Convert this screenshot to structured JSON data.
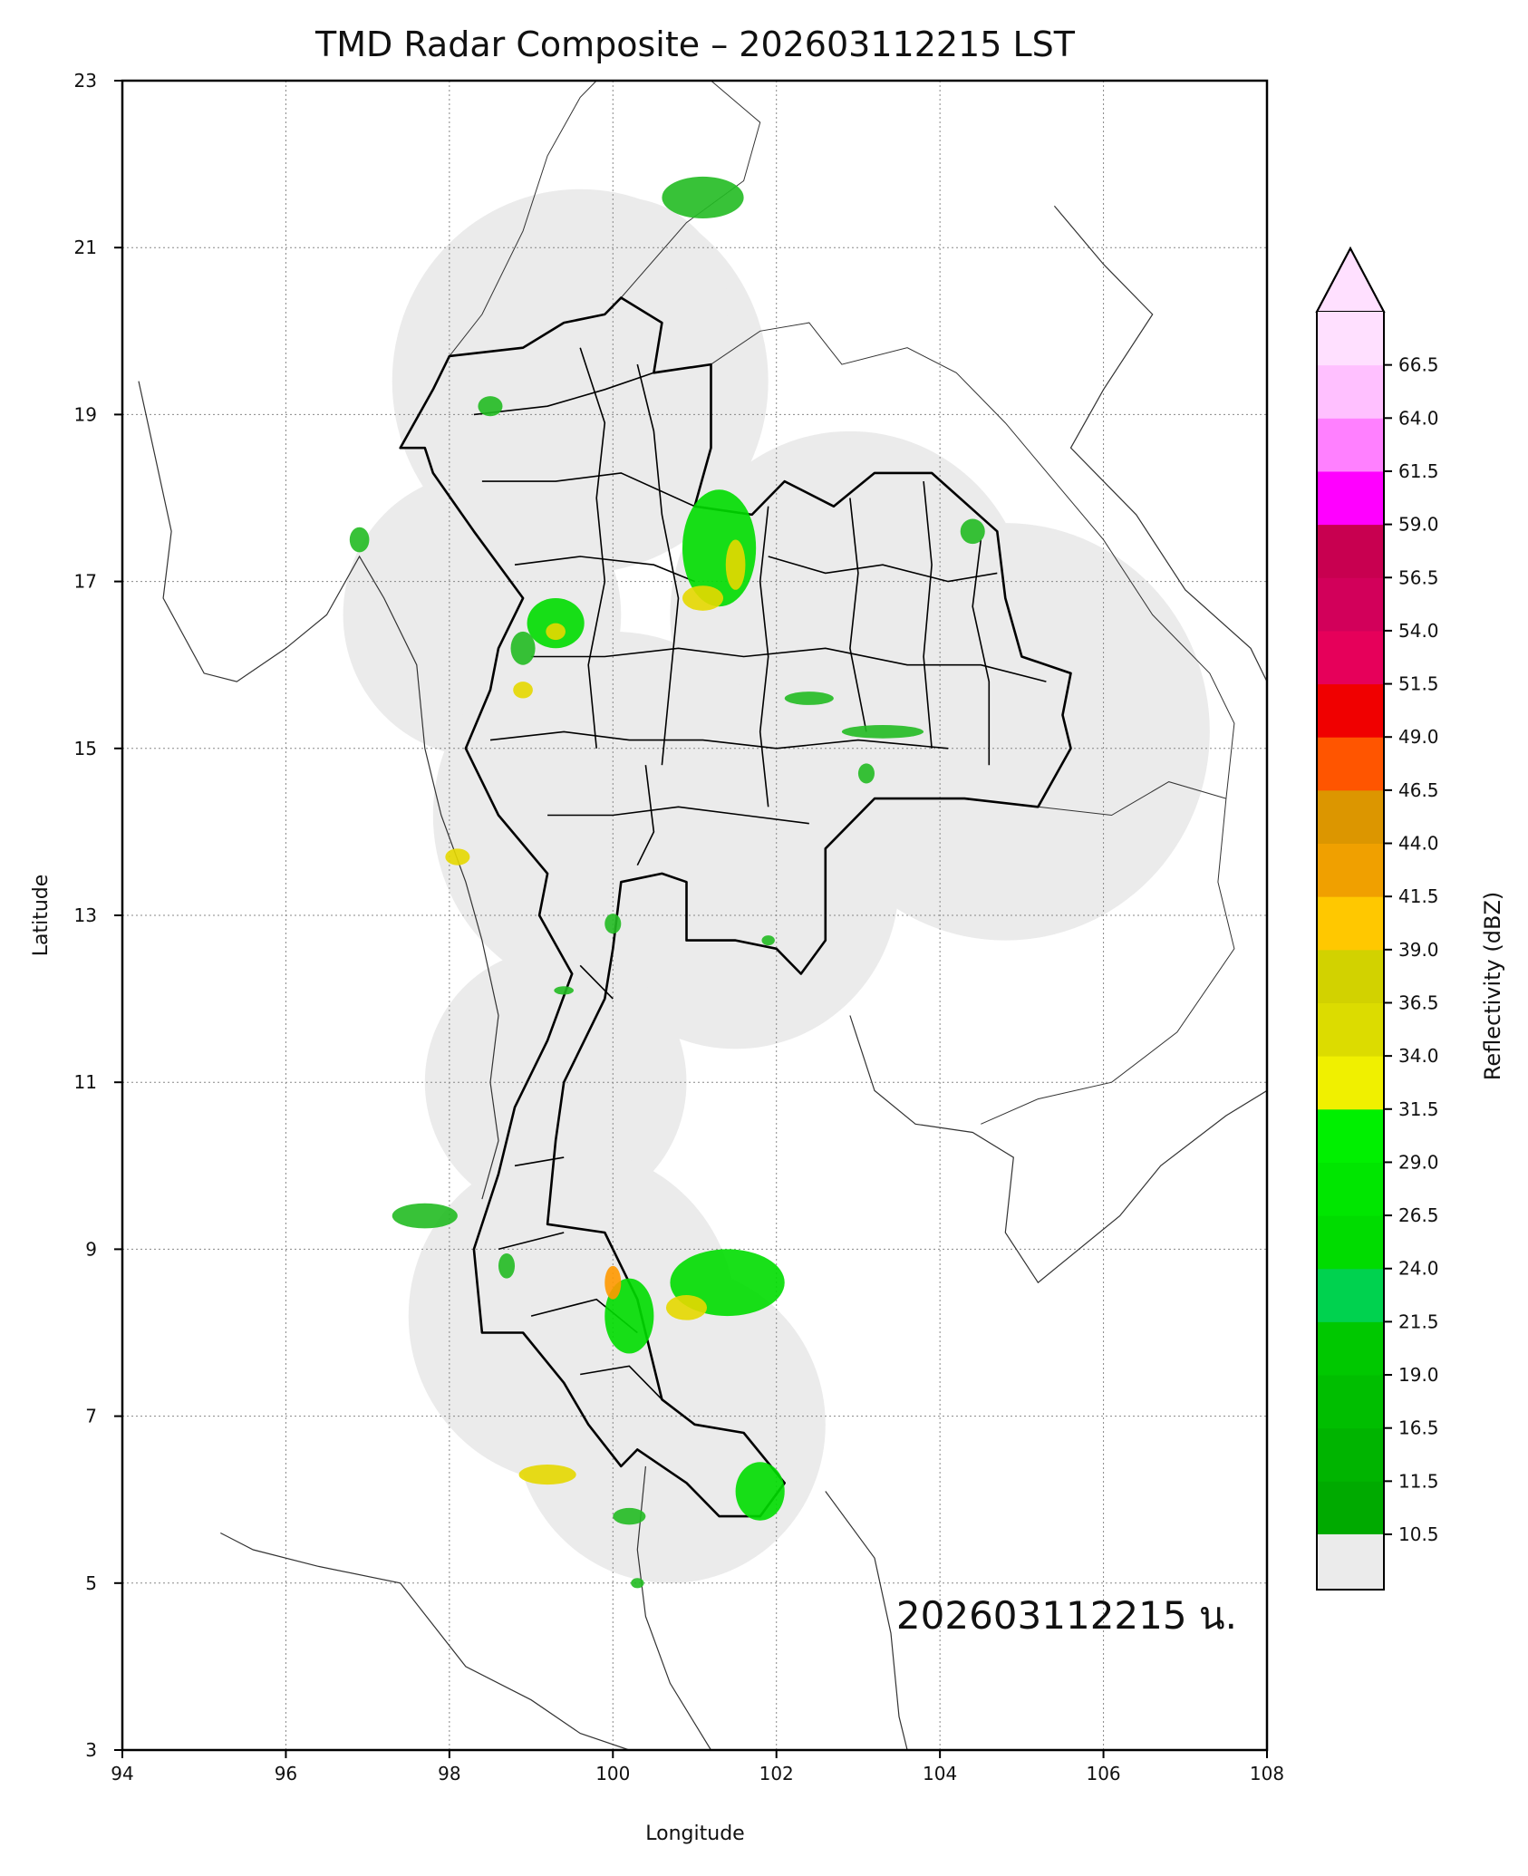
{
  "title": "TMD Radar Composite – 202603112215 LST",
  "stamp": "202603112215 น.",
  "axes": {
    "xlabel": "Longitude",
    "ylabel": "Latitude",
    "xlim": [
      94,
      108
    ],
    "ylim": [
      3,
      23
    ],
    "xticks": [
      "94",
      "96",
      "98",
      "100",
      "102",
      "104",
      "106",
      "108"
    ],
    "yticks": [
      "3",
      "5",
      "7",
      "9",
      "11",
      "13",
      "15",
      "17",
      "19",
      "21",
      "23"
    ],
    "grid": "dotted gray"
  },
  "colorbar": {
    "title": "Reflectivity (dBZ)",
    "tick_labels": [
      "10.5",
      "11.5",
      "16.5",
      "19.0",
      "21.5",
      "24.0",
      "26.5",
      "29.0",
      "31.5",
      "34.0",
      "36.5",
      "39.0",
      "41.5",
      "44.0",
      "46.5",
      "49.0",
      "51.5",
      "54.0",
      "56.5",
      "59.0",
      "61.5",
      "64.0",
      "66.5"
    ],
    "tick_values": [
      10.5,
      11.5,
      16.5,
      19.0,
      21.5,
      24.0,
      26.5,
      29.0,
      31.5,
      34.0,
      36.5,
      39.0,
      41.5,
      44.0,
      46.5,
      49.0,
      51.5,
      54.0,
      56.5,
      59.0,
      61.5,
      64.0,
      66.5
    ],
    "band_colors": [
      "#00aa00",
      "#00b400",
      "#00be00",
      "#00c800",
      "#00d24f",
      "#00dc00",
      "#00e600",
      "#00f000",
      "#f0f000",
      "#dcdc00",
      "#d2d200",
      "#ffc800",
      "#f0a000",
      "#dc9600",
      "#ff5500",
      "#f00000",
      "#e6005a",
      "#d2005a",
      "#c80050",
      "#ff00ff",
      "#ff80ff",
      "#ffc0ff",
      "#ffe0ff"
    ],
    "under_color": "#ebebeb",
    "over_color": "#ffe0ff"
  },
  "colors": {
    "coverage": "#ebebeb",
    "land_border": "#000000",
    "coast": "#333333",
    "echo_light": "#22bb22",
    "echo_mid": "#00dd00",
    "echo_high": "#e6d800",
    "echo_core": "#ff9900"
  },
  "coverage_circles": [
    {
      "lon": 99.6,
      "lat": 19.4,
      "r": 2.3
    },
    {
      "lon": 102.9,
      "lat": 16.6,
      "r": 2.2
    },
    {
      "lon": 104.8,
      "lat": 15.2,
      "r": 2.5
    },
    {
      "lon": 98.4,
      "lat": 16.6,
      "r": 1.7
    },
    {
      "lon": 100.0,
      "lat": 14.2,
      "r": 2.2
    },
    {
      "lon": 101.5,
      "lat": 13.4,
      "r": 2.0
    },
    {
      "lon": 99.3,
      "lat": 11.0,
      "r": 1.6
    },
    {
      "lon": 99.5,
      "lat": 8.2,
      "r": 2.0
    },
    {
      "lon": 100.7,
      "lat": 6.9,
      "r": 1.9
    },
    {
      "lon": 100.1,
      "lat": 20.3,
      "r": 1.3
    }
  ],
  "echoes": [
    {
      "lon": 101.3,
      "lat": 17.4,
      "rx": 0.45,
      "ry": 0.7,
      "level": "mid"
    },
    {
      "lon": 101.5,
      "lat": 17.2,
      "rx": 0.12,
      "ry": 0.3,
      "level": "high"
    },
    {
      "lon": 101.1,
      "lat": 16.8,
      "rx": 0.25,
      "ry": 0.15,
      "level": "high"
    },
    {
      "lon": 99.3,
      "lat": 16.5,
      "rx": 0.35,
      "ry": 0.3,
      "level": "mid"
    },
    {
      "lon": 99.3,
      "lat": 16.4,
      "rx": 0.12,
      "ry": 0.1,
      "level": "high"
    },
    {
      "lon": 98.9,
      "lat": 16.2,
      "rx": 0.15,
      "ry": 0.2,
      "level": "light"
    },
    {
      "lon": 98.9,
      "lat": 15.7,
      "rx": 0.12,
      "ry": 0.1,
      "level": "high"
    },
    {
      "lon": 102.4,
      "lat": 15.6,
      "rx": 0.3,
      "ry": 0.08,
      "level": "light"
    },
    {
      "lon": 103.3,
      "lat": 15.2,
      "rx": 0.5,
      "ry": 0.08,
      "level": "light"
    },
    {
      "lon": 103.1,
      "lat": 14.7,
      "rx": 0.1,
      "ry": 0.12,
      "level": "light"
    },
    {
      "lon": 98.5,
      "lat": 19.1,
      "rx": 0.15,
      "ry": 0.12,
      "level": "light"
    },
    {
      "lon": 101.1,
      "lat": 21.6,
      "rx": 0.5,
      "ry": 0.25,
      "level": "light"
    },
    {
      "lon": 96.9,
      "lat": 17.5,
      "rx": 0.12,
      "ry": 0.15,
      "level": "light"
    },
    {
      "lon": 98.1,
      "lat": 13.7,
      "rx": 0.15,
      "ry": 0.1,
      "level": "high"
    },
    {
      "lon": 101.4,
      "lat": 8.6,
      "rx": 0.7,
      "ry": 0.4,
      "level": "mid"
    },
    {
      "lon": 100.2,
      "lat": 8.2,
      "rx": 0.3,
      "ry": 0.45,
      "level": "mid"
    },
    {
      "lon": 100.0,
      "lat": 8.6,
      "rx": 0.1,
      "ry": 0.2,
      "level": "core"
    },
    {
      "lon": 100.9,
      "lat": 8.3,
      "rx": 0.25,
      "ry": 0.15,
      "level": "high"
    },
    {
      "lon": 97.7,
      "lat": 9.4,
      "rx": 0.4,
      "ry": 0.15,
      "level": "light"
    },
    {
      "lon": 99.2,
      "lat": 6.3,
      "rx": 0.35,
      "ry": 0.12,
      "level": "high"
    },
    {
      "lon": 101.8,
      "lat": 6.1,
      "rx": 0.3,
      "ry": 0.35,
      "level": "mid"
    },
    {
      "lon": 100.2,
      "lat": 5.8,
      "rx": 0.2,
      "ry": 0.1,
      "level": "light"
    },
    {
      "lon": 98.7,
      "lat": 8.8,
      "rx": 0.1,
      "ry": 0.15,
      "level": "light"
    },
    {
      "lon": 104.4,
      "lat": 17.6,
      "rx": 0.15,
      "ry": 0.15,
      "level": "light"
    },
    {
      "lon": 100.3,
      "lat": 5.0,
      "rx": 0.08,
      "ry": 0.06,
      "level": "light"
    },
    {
      "lon": 101.9,
      "lat": 12.7,
      "rx": 0.08,
      "ry": 0.06,
      "level": "light"
    },
    {
      "lon": 99.4,
      "lat": 12.1,
      "rx": 0.12,
      "ry": 0.05,
      "level": "light"
    },
    {
      "lon": 100.0,
      "lat": 12.9,
      "rx": 0.1,
      "ry": 0.12,
      "level": "light"
    }
  ],
  "thailand_outline": [
    [
      100.1,
      20.4
    ],
    [
      100.6,
      20.1
    ],
    [
      100.5,
      19.5
    ],
    [
      101.2,
      19.6
    ],
    [
      101.2,
      18.6
    ],
    [
      101.0,
      17.9
    ],
    [
      101.7,
      17.8
    ],
    [
      102.1,
      18.2
    ],
    [
      102.7,
      17.9
    ],
    [
      103.2,
      18.3
    ],
    [
      103.9,
      18.3
    ],
    [
      104.7,
      17.6
    ],
    [
      104.8,
      16.8
    ],
    [
      105.0,
      16.1
    ],
    [
      105.6,
      15.9
    ],
    [
      105.5,
      15.4
    ],
    [
      105.6,
      15.0
    ],
    [
      105.2,
      14.3
    ],
    [
      104.3,
      14.4
    ],
    [
      103.2,
      14.4
    ],
    [
      102.6,
      13.8
    ],
    [
      102.6,
      12.7
    ],
    [
      102.3,
      12.3
    ],
    [
      102.0,
      12.6
    ],
    [
      101.5,
      12.7
    ],
    [
      100.9,
      12.7
    ],
    [
      100.9,
      13.4
    ],
    [
      100.6,
      13.5
    ],
    [
      100.1,
      13.4
    ],
    [
      100.0,
      12.6
    ],
    [
      99.9,
      12.0
    ],
    [
      99.4,
      11.0
    ],
    [
      99.3,
      10.3
    ],
    [
      99.2,
      9.3
    ],
    [
      99.9,
      9.2
    ],
    [
      100.3,
      8.4
    ],
    [
      100.6,
      7.2
    ],
    [
      101.0,
      6.9
    ],
    [
      101.6,
      6.8
    ],
    [
      102.1,
      6.2
    ],
    [
      101.8,
      5.8
    ],
    [
      101.3,
      5.8
    ],
    [
      100.9,
      6.2
    ],
    [
      100.3,
      6.6
    ],
    [
      100.1,
      6.4
    ],
    [
      99.7,
      6.9
    ],
    [
      99.4,
      7.4
    ],
    [
      98.9,
      8.0
    ],
    [
      98.4,
      8.0
    ],
    [
      98.3,
      9.0
    ],
    [
      98.6,
      9.9
    ],
    [
      98.8,
      10.7
    ],
    [
      99.2,
      11.5
    ],
    [
      99.5,
      12.3
    ],
    [
      99.1,
      13.0
    ],
    [
      99.2,
      13.5
    ],
    [
      98.6,
      14.2
    ],
    [
      98.2,
      15.0
    ],
    [
      98.5,
      15.7
    ],
    [
      98.6,
      16.2
    ],
    [
      98.9,
      16.8
    ],
    [
      98.3,
      17.6
    ],
    [
      97.8,
      18.3
    ],
    [
      97.7,
      18.6
    ],
    [
      97.4,
      18.6
    ],
    [
      97.8,
      19.3
    ],
    [
      98.0,
      19.7
    ],
    [
      98.9,
      19.8
    ],
    [
      99.4,
      20.1
    ],
    [
      99.9,
      20.2
    ],
    [
      100.1,
      20.4
    ]
  ],
  "neighbor_coast": [
    [
      94.2,
      19.4
    ],
    [
      94.4,
      18.5
    ],
    [
      94.6,
      17.6
    ],
    [
      94.5,
      16.8
    ],
    [
      95.0,
      15.9
    ],
    [
      95.4,
      15.8
    ],
    [
      96.0,
      16.2
    ],
    [
      96.5,
      16.6
    ],
    [
      96.9,
      17.3
    ],
    [
      97.2,
      16.8
    ],
    [
      97.6,
      16.0
    ],
    [
      97.7,
      15.0
    ],
    [
      97.9,
      14.2
    ],
    [
      98.2,
      13.4
    ],
    [
      98.4,
      12.7
    ],
    [
      98.6,
      11.8
    ],
    [
      98.5,
      11.0
    ],
    [
      98.6,
      10.3
    ],
    [
      98.4,
      9.6
    ]
  ],
  "sumatra_coast": [
    [
      95.2,
      5.6
    ],
    [
      95.6,
      5.4
    ],
    [
      96.4,
      5.2
    ],
    [
      97.4,
      5.0
    ],
    [
      98.2,
      4.0
    ],
    [
      99.0,
      3.6
    ],
    [
      99.6,
      3.2
    ],
    [
      100.2,
      3.0
    ]
  ],
  "malaysia_coast": [
    [
      100.4,
      6.4
    ],
    [
      100.3,
      5.4
    ],
    [
      100.4,
      4.6
    ],
    [
      100.7,
      3.8
    ],
    [
      101.2,
      3.0
    ]
  ],
  "east_coast": [
    [
      102.6,
      6.1
    ],
    [
      103.2,
      5.3
    ],
    [
      103.4,
      4.4
    ],
    [
      103.5,
      3.4
    ],
    [
      103.6,
      3.0
    ]
  ],
  "indochina_coast": [
    [
      105.4,
      21.5
    ],
    [
      106.0,
      20.8
    ],
    [
      106.6,
      20.2
    ],
    [
      106.0,
      19.3
    ],
    [
      105.6,
      18.6
    ],
    [
      106.4,
      17.8
    ],
    [
      107.0,
      16.9
    ],
    [
      107.8,
      16.2
    ],
    [
      108.0,
      15.8
    ]
  ],
  "cambodia_coast": [
    [
      102.9,
      11.8
    ],
    [
      103.2,
      10.9
    ],
    [
      103.7,
      10.5
    ],
    [
      104.4,
      10.4
    ],
    [
      104.9,
      10.1
    ],
    [
      104.8,
      9.2
    ],
    [
      105.2,
      8.6
    ],
    [
      106.2,
      9.4
    ],
    [
      106.7,
      10.0
    ],
    [
      107.5,
      10.6
    ],
    [
      108.0,
      10.9
    ]
  ],
  "border_lines": [
    [
      [
        100.1,
        20.4
      ],
      [
        100.9,
        21.3
      ],
      [
        101.6,
        21.8
      ],
      [
        101.8,
        22.5
      ],
      [
        101.2,
        23.0
      ]
    ],
    [
      [
        101.2,
        19.6
      ],
      [
        101.8,
        20.0
      ],
      [
        102.4,
        20.1
      ],
      [
        102.8,
        19.6
      ],
      [
        103.6,
        19.8
      ],
      [
        104.2,
        19.5
      ],
      [
        104.8,
        18.9
      ],
      [
        105.4,
        18.2
      ],
      [
        106.0,
        17.5
      ],
      [
        106.6,
        16.6
      ],
      [
        107.3,
        15.9
      ],
      [
        107.6,
        15.3
      ],
      [
        107.5,
        14.4
      ],
      [
        107.4,
        13.4
      ],
      [
        107.6,
        12.6
      ],
      [
        106.9,
        11.6
      ],
      [
        106.1,
        11.0
      ],
      [
        105.2,
        10.8
      ],
      [
        104.5,
        10.5
      ]
    ],
    [
      [
        105.2,
        14.3
      ],
      [
        106.1,
        14.2
      ],
      [
        106.8,
        14.6
      ],
      [
        107.5,
        14.4
      ]
    ],
    [
      [
        98.0,
        19.7
      ],
      [
        98.4,
        20.2
      ],
      [
        98.9,
        21.2
      ],
      [
        99.2,
        22.1
      ],
      [
        99.6,
        22.8
      ],
      [
        99.8,
        23.0
      ]
    ]
  ],
  "province_lines": [
    [
      [
        98.3,
        19.0
      ],
      [
        99.2,
        19.1
      ],
      [
        99.9,
        19.3
      ],
      [
        100.5,
        19.5
      ]
    ],
    [
      [
        98.4,
        18.2
      ],
      [
        99.3,
        18.2
      ],
      [
        100.1,
        18.3
      ],
      [
        101.0,
        17.9
      ]
    ],
    [
      [
        98.8,
        17.2
      ],
      [
        99.6,
        17.3
      ],
      [
        100.5,
        17.2
      ],
      [
        101.0,
        17.0
      ]
    ],
    [
      [
        99.0,
        16.1
      ],
      [
        99.9,
        16.1
      ],
      [
        100.8,
        16.2
      ],
      [
        101.6,
        16.1
      ],
      [
        102.6,
        16.2
      ],
      [
        103.6,
        16.0
      ],
      [
        104.5,
        16.0
      ],
      [
        105.3,
        15.8
      ]
    ],
    [
      [
        98.5,
        15.1
      ],
      [
        99.4,
        15.2
      ],
      [
        100.2,
        15.1
      ],
      [
        101.1,
        15.1
      ],
      [
        102.0,
        15.0
      ],
      [
        103.0,
        15.1
      ],
      [
        104.1,
        15.0
      ]
    ],
    [
      [
        99.2,
        14.2
      ],
      [
        100.0,
        14.2
      ],
      [
        100.8,
        14.3
      ],
      [
        101.6,
        14.2
      ],
      [
        102.4,
        14.1
      ]
    ],
    [
      [
        101.9,
        17.3
      ],
      [
        102.6,
        17.1
      ],
      [
        103.3,
        17.2
      ],
      [
        104.1,
        17.0
      ],
      [
        104.7,
        17.1
      ]
    ],
    [
      [
        99.6,
        19.8
      ],
      [
        99.9,
        18.9
      ],
      [
        99.8,
        18.0
      ],
      [
        99.9,
        17.0
      ],
      [
        99.7,
        16.0
      ],
      [
        99.8,
        15.0
      ]
    ],
    [
      [
        100.3,
        19.6
      ],
      [
        100.5,
        18.8
      ],
      [
        100.6,
        17.8
      ],
      [
        100.8,
        16.8
      ],
      [
        100.7,
        15.8
      ],
      [
        100.6,
        14.8
      ]
    ],
    [
      [
        101.9,
        17.9
      ],
      [
        101.8,
        17.0
      ],
      [
        101.9,
        16.1
      ],
      [
        101.8,
        15.2
      ],
      [
        101.9,
        14.3
      ]
    ],
    [
      [
        102.9,
        18.0
      ],
      [
        103.0,
        17.1
      ],
      [
        102.9,
        16.2
      ],
      [
        103.1,
        15.2
      ]
    ],
    [
      [
        103.8,
        18.2
      ],
      [
        103.9,
        17.2
      ],
      [
        103.8,
        16.1
      ],
      [
        103.9,
        15.0
      ]
    ],
    [
      [
        104.5,
        17.5
      ],
      [
        104.4,
        16.7
      ],
      [
        104.6,
        15.8
      ],
      [
        104.6,
        14.8
      ]
    ],
    [
      [
        98.8,
        10.0
      ],
      [
        99.4,
        10.1
      ]
    ],
    [
      [
        98.6,
        9.0
      ],
      [
        99.4,
        9.2
      ]
    ],
    [
      [
        99.0,
        8.2
      ],
      [
        99.8,
        8.4
      ],
      [
        100.3,
        8.0
      ]
    ],
    [
      [
        99.6,
        7.5
      ],
      [
        100.2,
        7.6
      ],
      [
        100.6,
        7.2
      ]
    ],
    [
      [
        100.0,
        12.0
      ],
      [
        99.6,
        12.4
      ]
    ],
    [
      [
        100.4,
        14.8
      ],
      [
        100.5,
        14.0
      ],
      [
        100.3,
        13.6
      ]
    ]
  ]
}
